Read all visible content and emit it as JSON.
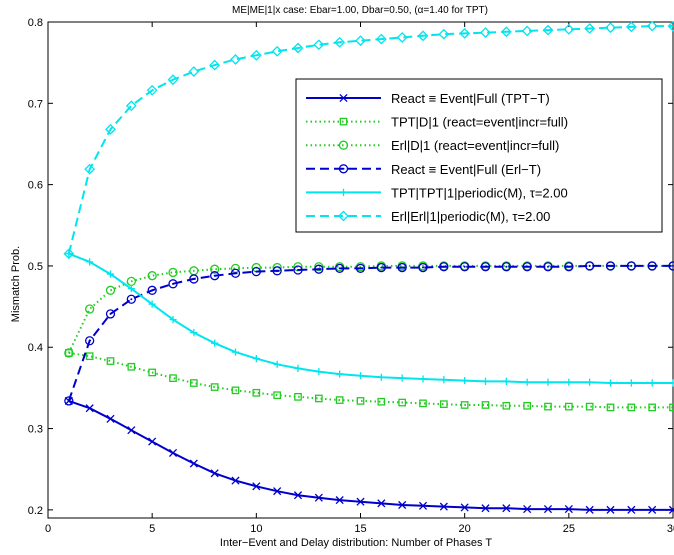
{
  "chart_data": {
    "type": "line",
    "title": "ME|ME|1|x case: Ebar=1.00, Dbar=0.50, (α=1.40 for TPT)",
    "xlabel": "Inter−Event and Delay distribution: Number of Phases T",
    "ylabel": "Mismatch Prob.",
    "xlim": [
      0,
      30
    ],
    "ylim": [
      0.19,
      0.8
    ],
    "xticks": [
      0,
      5,
      10,
      15,
      20,
      25,
      30
    ],
    "yticks": [
      0.2,
      0.3,
      0.4,
      0.5,
      0.6,
      0.7,
      0.8
    ],
    "grid": false,
    "legend_position": "top-right",
    "x": [
      1,
      2,
      3,
      4,
      5,
      6,
      7,
      8,
      9,
      10,
      11,
      12,
      13,
      14,
      15,
      16,
      17,
      18,
      19,
      20,
      21,
      22,
      23,
      24,
      25,
      26,
      27,
      28,
      29,
      30
    ],
    "series": [
      {
        "name": "React ≡ Event|Full (TPT−T)",
        "color": "#0000cc",
        "dash": "solid",
        "marker": "x",
        "values": [
          0.334,
          0.325,
          0.312,
          0.298,
          0.284,
          0.27,
          0.257,
          0.245,
          0.236,
          0.229,
          0.223,
          0.218,
          0.215,
          0.212,
          0.21,
          0.208,
          0.206,
          0.205,
          0.204,
          0.203,
          0.202,
          0.202,
          0.201,
          0.201,
          0.201,
          0.2,
          0.2,
          0.2,
          0.2,
          0.2
        ]
      },
      {
        "name": "TPT|D|1 (react=event|incr=full)",
        "color": "#22cc22",
        "dash": "dotted",
        "marker": "square",
        "values": [
          0.393,
          0.389,
          0.383,
          0.376,
          0.369,
          0.362,
          0.356,
          0.351,
          0.347,
          0.344,
          0.341,
          0.339,
          0.337,
          0.335,
          0.334,
          0.333,
          0.332,
          0.331,
          0.33,
          0.329,
          0.329,
          0.328,
          0.328,
          0.327,
          0.327,
          0.327,
          0.326,
          0.326,
          0.326,
          0.326
        ]
      },
      {
        "name": "Erl|D|1 (react=event|incr=full)",
        "color": "#22cc22",
        "dash": "dotted",
        "marker": "circle",
        "values": [
          0.393,
          0.447,
          0.47,
          0.481,
          0.488,
          0.492,
          0.494,
          0.496,
          0.497,
          0.498,
          0.498,
          0.499,
          0.499,
          0.499,
          0.499,
          0.5,
          0.5,
          0.5,
          0.5,
          0.5,
          0.5,
          0.5,
          0.5,
          0.5,
          0.5,
          0.5,
          0.5,
          0.5,
          0.5,
          0.5
        ]
      },
      {
        "name": "React ≡ Event|Full (Erl−T)",
        "color": "#0000cc",
        "dash": "dashed",
        "marker": "circle-dot",
        "values": [
          0.334,
          0.408,
          0.441,
          0.459,
          0.47,
          0.478,
          0.484,
          0.488,
          0.491,
          0.493,
          0.494,
          0.495,
          0.496,
          0.497,
          0.497,
          0.498,
          0.498,
          0.498,
          0.499,
          0.499,
          0.499,
          0.499,
          0.499,
          0.499,
          0.499,
          0.5,
          0.5,
          0.5,
          0.5,
          0.5
        ]
      },
      {
        "name": "TPT|TPT|1|periodic(M), τ=2.00",
        "color": "#00e5ee",
        "dash": "solid",
        "marker": "plus",
        "values": [
          0.515,
          0.505,
          0.49,
          0.472,
          0.453,
          0.434,
          0.418,
          0.405,
          0.394,
          0.386,
          0.379,
          0.374,
          0.37,
          0.367,
          0.365,
          0.363,
          0.362,
          0.361,
          0.36,
          0.359,
          0.358,
          0.358,
          0.357,
          0.357,
          0.357,
          0.357,
          0.356,
          0.356,
          0.356,
          0.356
        ]
      },
      {
        "name": "Erl|Erl|1|periodic(M), τ=2.00",
        "color": "#00e5ee",
        "dash": "dashed",
        "marker": "diamond",
        "values": [
          0.515,
          0.619,
          0.668,
          0.697,
          0.716,
          0.729,
          0.739,
          0.747,
          0.754,
          0.759,
          0.764,
          0.768,
          0.772,
          0.775,
          0.777,
          0.779,
          0.781,
          0.783,
          0.785,
          0.786,
          0.787,
          0.788,
          0.789,
          0.79,
          0.791,
          0.792,
          0.793,
          0.794,
          0.795,
          0.795
        ]
      }
    ]
  }
}
